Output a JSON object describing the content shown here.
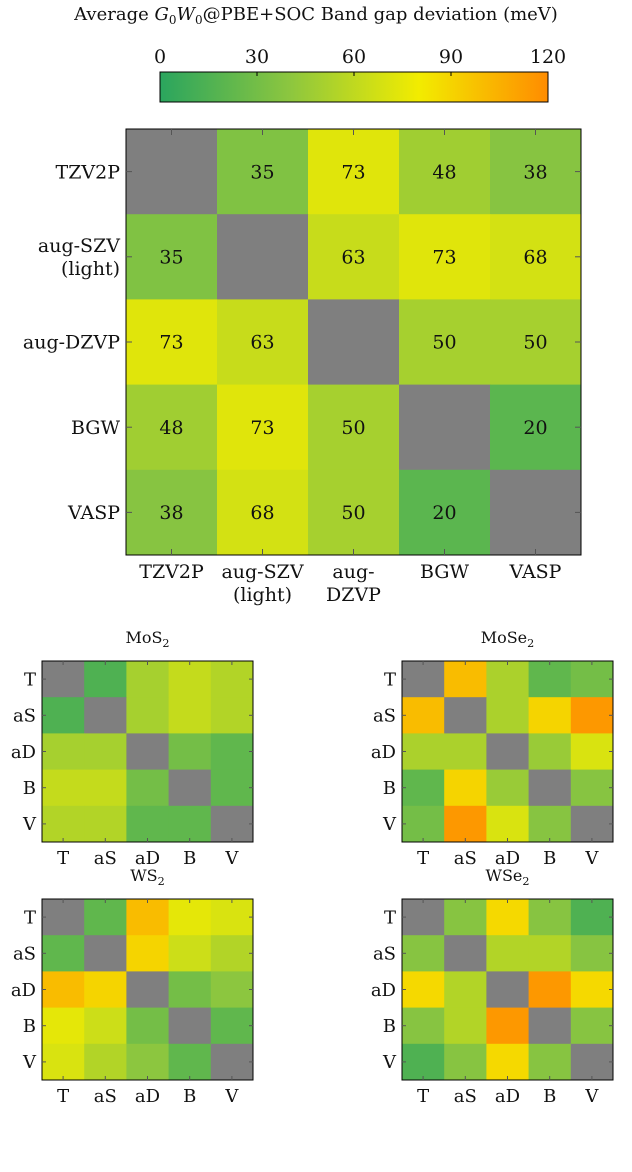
{
  "colorbar": {
    "title_pre": "Average ",
    "title_g": "G",
    "title_g_sub": "0",
    "title_w": "W",
    "title_w_sub": "0",
    "title_post": "@PBE+SOC Band gap deviation (meV)",
    "ticks": [
      "0",
      "30",
      "60",
      "90",
      "120"
    ],
    "min": 0,
    "max": 120,
    "stops": [
      "#2aa55e",
      "#8cc63f",
      "#f2ec00",
      "#ff8c00"
    ]
  },
  "chart_data": [
    {
      "type": "heatmap",
      "row_labels": [
        "TZV2P",
        "aug-SZV (light)",
        "aug-DZVP",
        "BGW",
        "VASP"
      ],
      "col_labels": [
        "TZV2P",
        "aug-SZV (light)",
        "aug-DZVP",
        "BGW",
        "VASP"
      ],
      "values": [
        [
          null,
          35,
          73,
          48,
          38
        ],
        [
          35,
          null,
          63,
          73,
          68
        ],
        [
          73,
          63,
          null,
          50,
          50
        ],
        [
          48,
          73,
          50,
          null,
          20
        ],
        [
          38,
          68,
          50,
          20,
          null
        ]
      ],
      "show_values": true,
      "diagonal_color": "#7f7f7f"
    },
    {
      "type": "heatmap",
      "title_base": "MoS",
      "title_sub": "2",
      "row_labels": [
        "T",
        "aS",
        "aD",
        "B",
        "V"
      ],
      "col_labels": [
        "T",
        "aS",
        "aD",
        "B",
        "V"
      ],
      "values": [
        [
          null,
          15,
          50,
          62,
          55
        ],
        [
          15,
          null,
          50,
          62,
          55
        ],
        [
          50,
          50,
          null,
          30,
          22
        ],
        [
          62,
          62,
          30,
          null,
          22
        ],
        [
          55,
          55,
          22,
          22,
          null
        ]
      ]
    },
    {
      "type": "heatmap",
      "title_base": "MoSe",
      "title_sub": "2",
      "row_labels": [
        "T",
        "aS",
        "aD",
        "B",
        "V"
      ],
      "col_labels": [
        "T",
        "aS",
        "aD",
        "B",
        "V"
      ],
      "values": [
        [
          null,
          100,
          52,
          22,
          30
        ],
        [
          100,
          null,
          52,
          90,
          115
        ],
        [
          52,
          52,
          null,
          45,
          70
        ],
        [
          22,
          90,
          45,
          null,
          38
        ],
        [
          30,
          115,
          70,
          38,
          null
        ]
      ]
    },
    {
      "type": "heatmap",
      "title_base": "WS",
      "title_sub": "2",
      "row_labels": [
        "T",
        "aS",
        "aD",
        "B",
        "V"
      ],
      "col_labels": [
        "T",
        "aS",
        "aD",
        "B",
        "V"
      ],
      "values": [
        [
          null,
          22,
          100,
          75,
          70
        ],
        [
          22,
          null,
          90,
          65,
          55
        ],
        [
          100,
          90,
          null,
          30,
          40
        ],
        [
          75,
          65,
          30,
          null,
          22
        ],
        [
          70,
          55,
          40,
          22,
          null
        ]
      ]
    },
    {
      "type": "heatmap",
      "title_base": "WSe",
      "title_sub": "2",
      "row_labels": [
        "T",
        "aS",
        "aD",
        "B",
        "V"
      ],
      "col_labels": [
        "T",
        "aS",
        "aD",
        "B",
        "V"
      ],
      "values": [
        [
          null,
          38,
          88,
          38,
          15
        ],
        [
          38,
          null,
          55,
          55,
          38
        ],
        [
          88,
          55,
          null,
          115,
          88
        ],
        [
          38,
          55,
          115,
          null,
          38
        ],
        [
          15,
          38,
          88,
          38,
          null
        ]
      ]
    }
  ]
}
